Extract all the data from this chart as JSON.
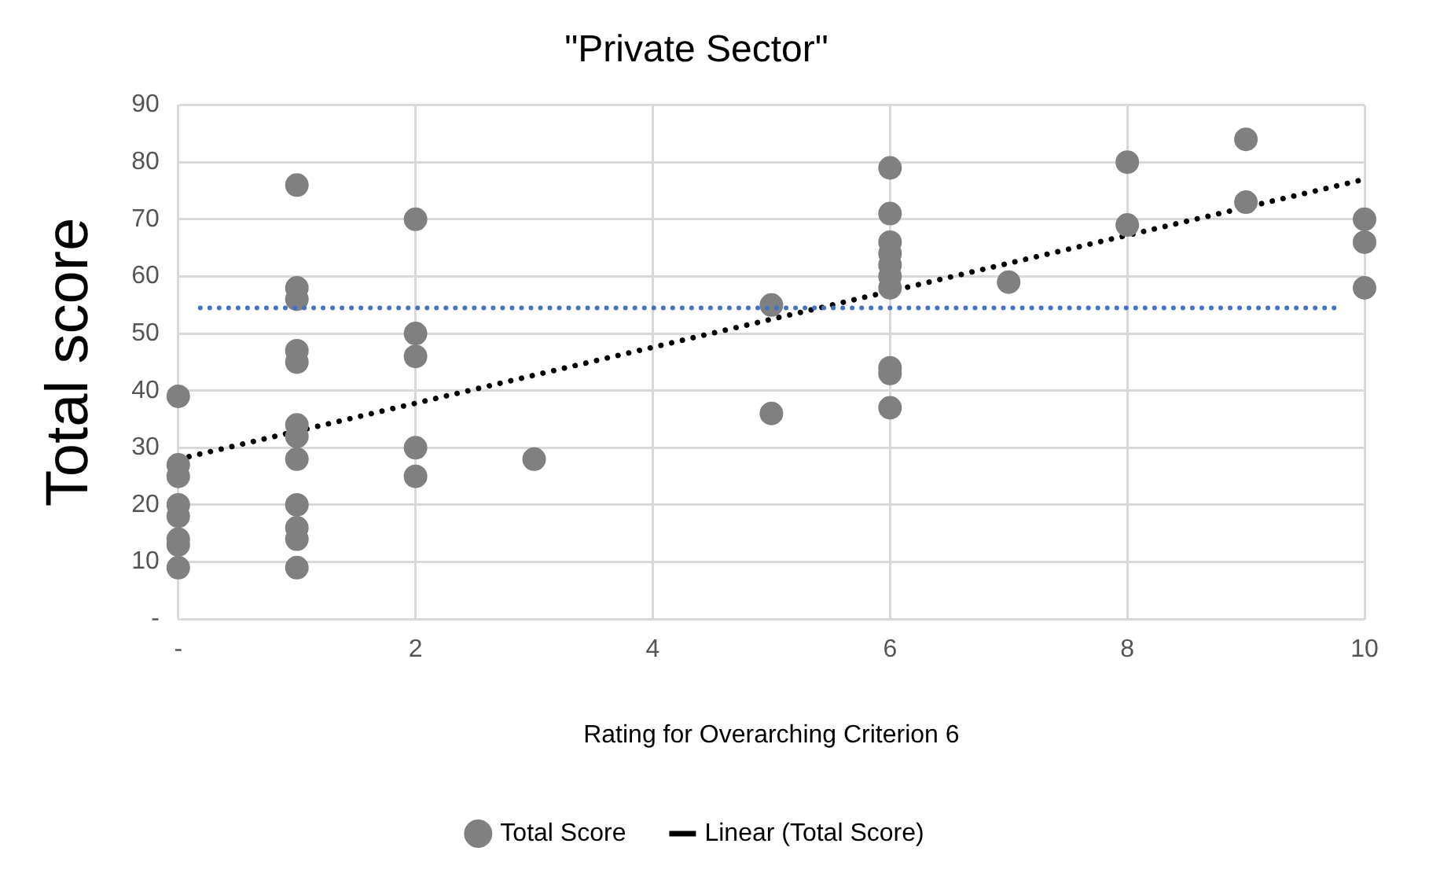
{
  "chart_data": {
    "type": "scatter",
    "title": "\"Private Sector\"",
    "xlabel": "Rating for Overarching Criterion 6",
    "ylabel": "Total score",
    "xlim": [
      0,
      10
    ],
    "xticks": [
      {
        "value": 0,
        "label": "-"
      },
      2,
      4,
      6,
      8,
      10
    ],
    "ylim": [
      0,
      90
    ],
    "yticks": [
      {
        "value": 0,
        "label": "-"
      },
      10,
      20,
      30,
      40,
      50,
      60,
      70,
      80,
      90
    ],
    "grid": true,
    "legend": "bottom",
    "marker": "circle",
    "series": [
      {
        "name": "Total Score",
        "color": "#808080",
        "x": [
          0,
          0,
          0,
          0,
          0,
          0,
          0,
          0,
          1,
          1,
          1,
          1,
          1,
          1,
          1,
          1,
          1,
          1,
          1,
          1,
          2,
          2,
          2,
          2,
          2,
          3,
          5,
          5,
          6,
          6,
          6,
          6,
          6,
          6,
          6,
          6,
          6,
          6,
          7,
          8,
          8,
          9,
          9,
          10,
          10,
          10
        ],
        "values": [
          39,
          27,
          25,
          20,
          18,
          14,
          13,
          9,
          76,
          58,
          56,
          47,
          45,
          34,
          32,
          28,
          20,
          16,
          14,
          9,
          70,
          50,
          46,
          30,
          25,
          28,
          55,
          36,
          79,
          71,
          66,
          64,
          62,
          60,
          58,
          44,
          43,
          37,
          59,
          80,
          69,
          84,
          73,
          70,
          66,
          58
        ]
      },
      {
        "name": "Linear (Total Score)",
        "type": "line",
        "color": "#000000",
        "marker": "none",
        "line_style": "dotted",
        "x": [
          0,
          10
        ],
        "values": [
          28,
          77
        ]
      }
    ],
    "ref_lines": [
      {
        "axis": "y",
        "value": 54.5,
        "color": "#4472c4",
        "line_style": "dotted"
      }
    ]
  }
}
